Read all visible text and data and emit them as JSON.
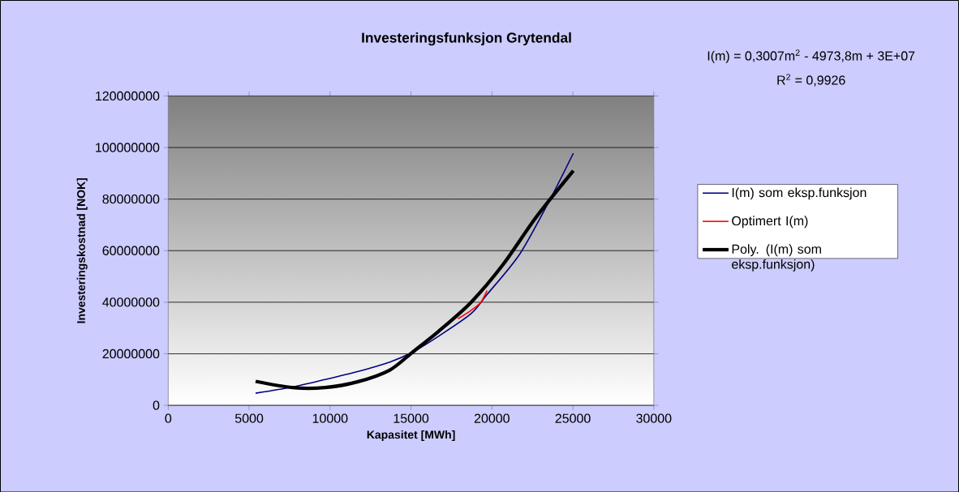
{
  "chart_data": {
    "type": "line",
    "title": "Investeringsfunksjon Grytendal",
    "xlabel": "Kapasitet [MWh]",
    "ylabel": "Investeringskostnad [NOK]",
    "annotations": [
      "I(m) = 0,3007m$^{2}$ - 4973,8m + 3E+07",
      "R$^{2}$ = 0,9926"
    ],
    "xlim": [
      0,
      30000
    ],
    "xticks": [
      0,
      5000,
      10000,
      15000,
      20000,
      25000,
      30000
    ],
    "ylim": [
      0,
      120000000
    ],
    "yticks": [
      0,
      20000000,
      40000000,
      60000000,
      80000000,
      100000000,
      120000000
    ],
    "grid": "y",
    "legend": "right",
    "marker": "none",
    "line_style": "solid",
    "series": [
      {
        "name": "I(m) som eksp.funksjon",
        "color": "#000080",
        "x": [
          5400,
          7670,
          9680,
          11680,
          13690,
          15090,
          16700,
          18700,
          19700,
          21710,
          23520,
          25030
        ],
        "values": [
          4700000,
          7100000,
          10000000,
          13100000,
          16800000,
          20600000,
          26800000,
          35500000,
          43000000,
          58600000,
          79000000,
          97800000
        ]
      },
      {
        "name": "Optimert I(m)",
        "color": "#ff0000",
        "x": [
          17900,
          18700,
          19300,
          19700
        ],
        "values": [
          33600000,
          36800000,
          39900000,
          44500000
        ]
      },
      {
        "name": "Poly. (I(m) som eksp.funksjon)",
        "color": "#000000",
        "x": [
          5400,
          7670,
          9680,
          11680,
          13690,
          15090,
          16700,
          18700,
          20710,
          22720,
          25030
        ],
        "values": [
          9300000,
          6900000,
          6900000,
          9100000,
          13700000,
          20600000,
          28700000,
          39900000,
          54800000,
          72900000,
          91000000
        ]
      }
    ]
  }
}
